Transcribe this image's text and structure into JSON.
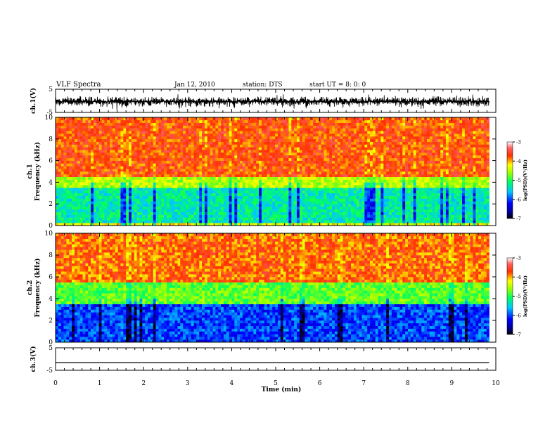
{
  "header": {
    "title": "VLF Spectra",
    "date": "Jan 12, 2010",
    "station": "station: DTS",
    "start": "start UT = 8: 0: 0"
  },
  "chart_data": [
    {
      "type": "line",
      "name": "ch1-waveform",
      "ylabel": "ch.1(V)",
      "xlim": [
        0,
        10
      ],
      "ylim": [
        -5,
        5
      ],
      "yticks": [
        5,
        -5
      ],
      "description_values": {
        "typical_amplitude_V": [
          -2.5,
          2.5
        ],
        "max_burst_V": [
          -4,
          4
        ]
      }
    },
    {
      "type": "heatmap",
      "name": "ch1-spectrogram",
      "ylabel": "ch.1\nFrequency  (kHz)",
      "xlim": [
        0,
        10
      ],
      "ylim": [
        0,
        10
      ],
      "yticks": [
        0,
        2,
        4,
        6,
        8,
        10
      ],
      "colorbar": {
        "label": "log(PSD)(V²/Hz)",
        "range": [
          -7,
          -3
        ],
        "ticks": [
          -3,
          -4,
          -5,
          -6,
          -7
        ]
      },
      "bands_log_psd": [
        {
          "f_kHz": [
            0,
            0.3
          ],
          "value": -4.3
        },
        {
          "f_kHz": [
            0.3,
            3.5
          ],
          "value": -5.3
        },
        {
          "f_kHz": [
            3.5,
            4.5
          ],
          "value": -4.5
        },
        {
          "f_kHz": [
            4.5,
            10
          ],
          "value": -3.7
        }
      ]
    },
    {
      "type": "heatmap",
      "name": "ch2-spectrogram",
      "ylabel": "ch.2\nFrequency  (kHz)",
      "xlim": [
        0,
        10
      ],
      "ylim": [
        0,
        10
      ],
      "yticks": [
        0,
        2,
        4,
        6,
        8,
        10
      ],
      "colorbar": {
        "label": "log(PSD)(V²/Hz)",
        "range": [
          -7,
          -3
        ],
        "ticks": [
          -3,
          -4,
          -5,
          -6,
          -7
        ]
      },
      "bands_log_psd": [
        {
          "f_kHz": [
            0,
            3.5
          ],
          "value": -6.0
        },
        {
          "f_kHz": [
            3.5,
            5.5
          ],
          "value": -4.8
        },
        {
          "f_kHz": [
            5.5,
            10
          ],
          "value": -3.8
        }
      ]
    },
    {
      "type": "line",
      "name": "ch3-waveform",
      "ylabel": "ch.3(V)",
      "xlabel": "Time  (min)",
      "xlim": [
        0,
        10
      ],
      "ylim": [
        -5,
        5
      ],
      "yticks": [
        5,
        -5
      ],
      "xticks": [
        0,
        1,
        2,
        3,
        4,
        5,
        6,
        7,
        8,
        9,
        10
      ],
      "constant_value_V": -1.6
    }
  ]
}
